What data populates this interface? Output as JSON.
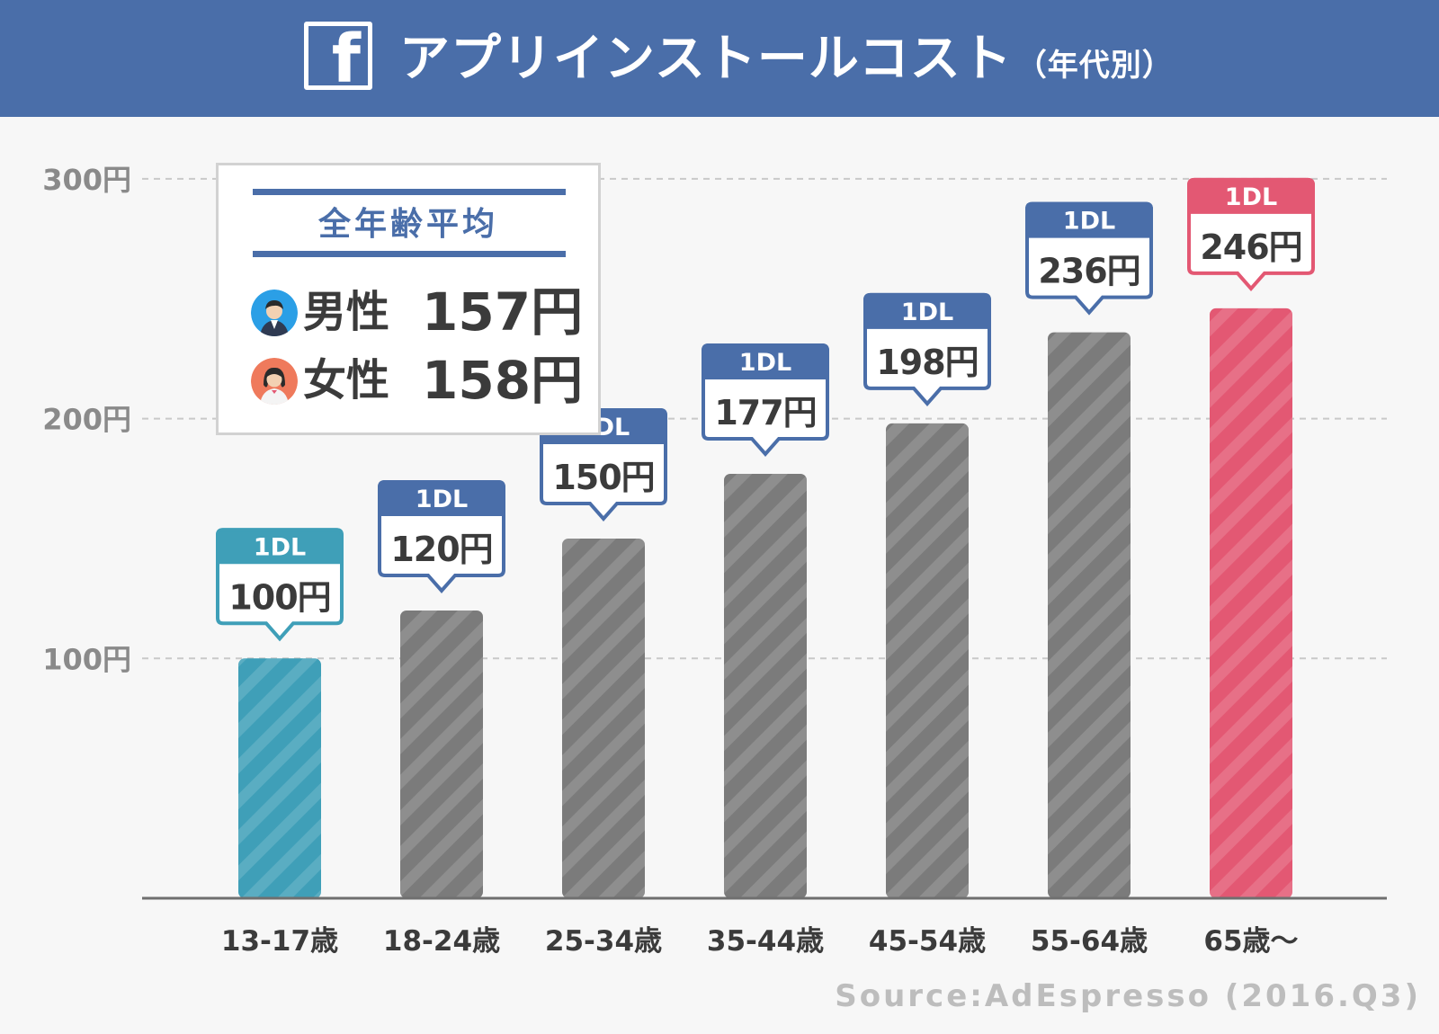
{
  "header": {
    "title": "アプリインストールコスト",
    "title_suffix": "（年代別）",
    "logo_icon": "facebook-icon",
    "logo_letter": "f"
  },
  "average_box": {
    "title": "全年齢平均",
    "male_label": "男性",
    "male_value": "157円",
    "female_label": "女性",
    "female_value": "158円",
    "male_icon": "male-avatar-icon",
    "female_icon": "female-avatar-icon"
  },
  "source": "Source:AdEspresso (2016.Q3)",
  "colors": {
    "header": "#4a6ea9",
    "bar_default": "#7b7b7b",
    "bar_first": "#3f9fb8",
    "bar_last": "#e35873",
    "callout_default": "#4a6ea9"
  },
  "chart_data": {
    "type": "bar",
    "title": "アプリインストールコスト（年代別）",
    "xlabel": "",
    "ylabel": "",
    "categories": [
      "13-17歳",
      "18-24歳",
      "25-34歳",
      "35-44歳",
      "45-54歳",
      "55-64歳",
      "65歳〜"
    ],
    "values": [
      100,
      120,
      150,
      177,
      198,
      236,
      246
    ],
    "value_labels": [
      "100円",
      "120円",
      "150円",
      "177円",
      "198円",
      "236円",
      "246円"
    ],
    "callout_header": "1DL",
    "y_ticks": [
      100,
      200,
      300
    ],
    "y_tick_labels": [
      "100円",
      "200円",
      "300円"
    ],
    "ylim": [
      0,
      300
    ],
    "grid": true,
    "bar_colors": [
      "#3f9fb8",
      "#7b7b7b",
      "#7b7b7b",
      "#7b7b7b",
      "#7b7b7b",
      "#7b7b7b",
      "#e35873"
    ],
    "callout_colors": [
      "#3f9fb8",
      "#4a6ea9",
      "#4a6ea9",
      "#4a6ea9",
      "#4a6ea9",
      "#4a6ea9",
      "#e35873"
    ]
  }
}
